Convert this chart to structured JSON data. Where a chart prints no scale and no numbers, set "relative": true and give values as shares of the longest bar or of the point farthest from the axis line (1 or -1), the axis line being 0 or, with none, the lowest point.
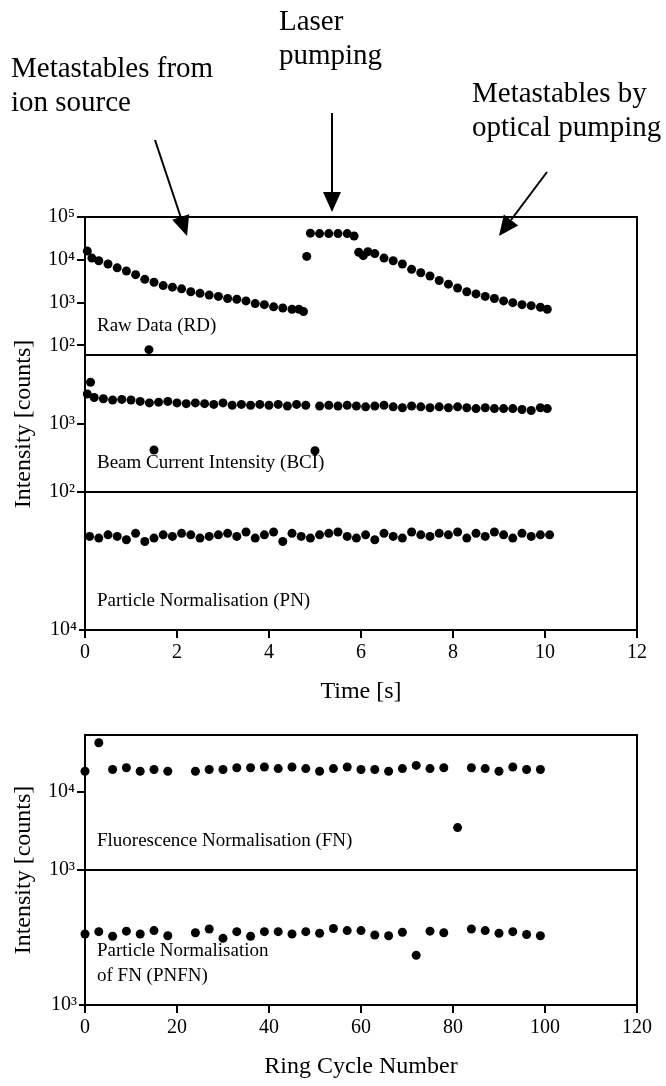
{
  "chart_data": [
    {
      "type": "scatter",
      "color": "#000000",
      "marker": "circle",
      "log": "y",
      "tick_labels": "y",
      "x": [
        0.05,
        0.15,
        0.3,
        0.5,
        0.7,
        0.9,
        1.1,
        1.3,
        1.39,
        1.5,
        1.7,
        1.9,
        2.1,
        2.3,
        2.5,
        2.7,
        2.9,
        3.1,
        3.3,
        3.5,
        3.7,
        3.9,
        4.1,
        4.3,
        4.5,
        4.65,
        4.75,
        4.82,
        4.9,
        5.1,
        5.3,
        5.5,
        5.7,
        5.85,
        5.95,
        6.05,
        6.15,
        6.3,
        6.5,
        6.7,
        6.9,
        7.1,
        7.3,
        7.5,
        7.7,
        7.9,
        8.1,
        8.3,
        8.5,
        8.7,
        8.9,
        9.1,
        9.3,
        9.5,
        9.7,
        9.9,
        10.05
      ],
      "values": [
        16000,
        11000,
        9500,
        8000,
        6500,
        5500,
        4500,
        3500,
        80,
        3000,
        2500,
        2300,
        2100,
        1800,
        1650,
        1500,
        1400,
        1250,
        1200,
        1100,
        950,
        900,
        800,
        750,
        700,
        700,
        620,
        12000,
        42000,
        41000,
        41000,
        41000,
        41000,
        36000,
        15000,
        12500,
        15500,
        14000,
        11000,
        9500,
        8000,
        6000,
        5000,
        4200,
        3300,
        2700,
        2200,
        1800,
        1600,
        1400,
        1250,
        1100,
        1000,
        900,
        850,
        780,
        700
      ],
      "xlim": [
        0,
        12
      ],
      "xticks": [
        0,
        2,
        4,
        6,
        8,
        10,
        12
      ],
      "ylim": [
        60,
        100000
      ],
      "yticks": [
        {
          "value": 100,
          "label": "10²"
        },
        {
          "value": 1000,
          "label": "10³"
        },
        {
          "value": 10000,
          "label": "10⁴"
        },
        {
          "value": 100000,
          "label": "10⁵"
        }
      ],
      "annotations": [
        "Raw Data (RD)",
        "Metastables from ion source",
        "Laser pumping",
        "Metastables by optical pumping"
      ]
    },
    {
      "type": "scatter",
      "color": "#000000",
      "marker": "circle",
      "log": "y",
      "tick_labels": "y",
      "ylabel": "Intensity [counts]",
      "x": [
        0.05,
        0.12,
        0.2,
        0.4,
        0.6,
        0.8,
        1.0,
        1.2,
        1.4,
        1.5,
        1.6,
        1.8,
        2.0,
        2.2,
        2.4,
        2.6,
        2.8,
        3.0,
        3.2,
        3.4,
        3.6,
        3.8,
        4.0,
        4.2,
        4.4,
        4.6,
        4.8,
        5.0,
        5.1,
        5.3,
        5.5,
        5.7,
        5.9,
        6.1,
        6.3,
        6.5,
        6.7,
        6.9,
        7.1,
        7.3,
        7.5,
        7.7,
        7.9,
        8.1,
        8.3,
        8.5,
        8.7,
        8.9,
        9.1,
        9.3,
        9.5,
        9.7,
        9.9,
        10.05
      ],
      "values": [
        2700,
        4000,
        2400,
        2300,
        2200,
        2250,
        2200,
        2100,
        2000,
        410,
        2050,
        2100,
        2000,
        1950,
        2000,
        1950,
        1900,
        2000,
        1850,
        1900,
        1850,
        1900,
        1850,
        1900,
        1800,
        1900,
        1850,
        400,
        1800,
        1850,
        1800,
        1850,
        1800,
        1750,
        1800,
        1850,
        1750,
        1700,
        1800,
        1750,
        1700,
        1750,
        1700,
        1750,
        1700,
        1650,
        1700,
        1650,
        1650,
        1650,
        1600,
        1550,
        1700,
        1650
      ],
      "xlim": [
        0,
        12
      ],
      "xticks": [
        0,
        2,
        4,
        6,
        8,
        10,
        12
      ],
      "ylim": [
        100,
        10000
      ],
      "yticks": [
        {
          "value": 100,
          "label": "10²"
        },
        {
          "value": 1000,
          "label": "10³"
        }
      ],
      "annotations": [
        "Beam Current Intensity (BCI)"
      ]
    },
    {
      "type": "scatter",
      "color": "#000000",
      "marker": "circle",
      "relative": true,
      "xlabel": "Time [s]",
      "x": [
        0.1,
        0.3,
        0.5,
        0.7,
        0.9,
        1.1,
        1.3,
        1.5,
        1.7,
        1.9,
        2.1,
        2.3,
        2.5,
        2.7,
        2.9,
        3.1,
        3.3,
        3.5,
        3.7,
        3.9,
        4.1,
        4.3,
        4.5,
        4.7,
        4.9,
        5.1,
        5.3,
        5.5,
        5.7,
        5.9,
        6.1,
        6.3,
        6.5,
        6.7,
        6.9,
        7.1,
        7.3,
        7.5,
        7.7,
        7.9,
        8.1,
        8.3,
        8.5,
        8.7,
        8.9,
        9.1,
        9.3,
        9.5,
        9.7,
        9.9,
        10.1
      ],
      "values": [
        0.955,
        0.938,
        0.971,
        0.955,
        0.921,
        0.986,
        0.903,
        0.938,
        0.971,
        0.955,
        0.986,
        0.971,
        0.938,
        0.955,
        0.971,
        0.986,
        0.955,
        1,
        0.938,
        0.971,
        1,
        0.903,
        0.986,
        0.955,
        0.938,
        0.971,
        0.986,
        1,
        0.955,
        0.938,
        0.971,
        0.921,
        0.986,
        0.955,
        0.938,
        1,
        0.971,
        0.955,
        0.986,
        0.971,
        1,
        0.938,
        0.986,
        0.955,
        1,
        0.971,
        0.938,
        0.986,
        0.955,
        0.971,
        0.971
      ],
      "xlim": [
        0,
        12
      ],
      "xticks": [
        0,
        2,
        4,
        6,
        8,
        10,
        12
      ],
      "annotations": [
        "Particle Normalisation (PN)",
        "10⁴"
      ]
    },
    {
      "type": "scatter",
      "color": "#000000",
      "marker": "circle",
      "log": "y",
      "tick_labels": "y",
      "ylabel": "Intensity [counts]",
      "x": [
        0,
        3,
        6,
        9,
        12,
        15,
        18,
        24,
        27,
        30,
        33,
        36,
        39,
        42,
        45,
        48,
        51,
        54,
        57,
        60,
        63,
        66,
        69,
        72,
        75,
        78,
        81,
        84,
        87,
        90,
        93,
        96,
        99
      ],
      "values": [
        18500,
        43000,
        19500,
        20500,
        18500,
        19500,
        18500,
        18500,
        19500,
        19500,
        20500,
        20500,
        21000,
        20000,
        21000,
        20000,
        18500,
        20000,
        21000,
        19500,
        19500,
        18500,
        20000,
        22000,
        20000,
        20500,
        3500,
        20500,
        20000,
        18500,
        21000,
        19500,
        19500
      ],
      "xlim": [
        0,
        120
      ],
      "xticks": [
        0,
        20,
        40,
        60,
        80,
        100,
        120
      ],
      "ylim": [
        1000,
        54000
      ],
      "yticks": [
        {
          "value": 1000,
          "label": "10³"
        },
        {
          "value": 10000,
          "label": "10⁴"
        }
      ],
      "annotations": [
        "Fluorescence Normalisation (FN)"
      ]
    },
    {
      "type": "scatter",
      "color": "#000000",
      "marker": "circle",
      "relative": true,
      "xlabel": "Ring Cycle Number",
      "x": [
        0,
        3,
        6,
        9,
        12,
        15,
        18,
        24,
        27,
        30,
        33,
        36,
        39,
        42,
        45,
        48,
        51,
        54,
        57,
        60,
        63,
        66,
        69,
        72,
        75,
        78,
        84,
        87,
        90,
        93,
        96,
        99
      ],
      "values": [
        0.928,
        0.958,
        0.898,
        0.965,
        0.928,
        0.972,
        0.905,
        0.944,
        0.993,
        0.871,
        0.958,
        0.898,
        0.958,
        0.958,
        0.928,
        0.958,
        0.937,
        1,
        0.972,
        0.972,
        0.914,
        0.905,
        0.951,
        0.649,
        0.965,
        0.944,
        0.993,
        0.972,
        0.937,
        0.958,
        0.921,
        0.905
      ],
      "xlim": [
        0,
        120
      ],
      "xticks": [
        0,
        20,
        40,
        60,
        80,
        100,
        120
      ],
      "annotations": [
        "Particle Normalisation of FN (PNFN)",
        "10³"
      ]
    }
  ]
}
